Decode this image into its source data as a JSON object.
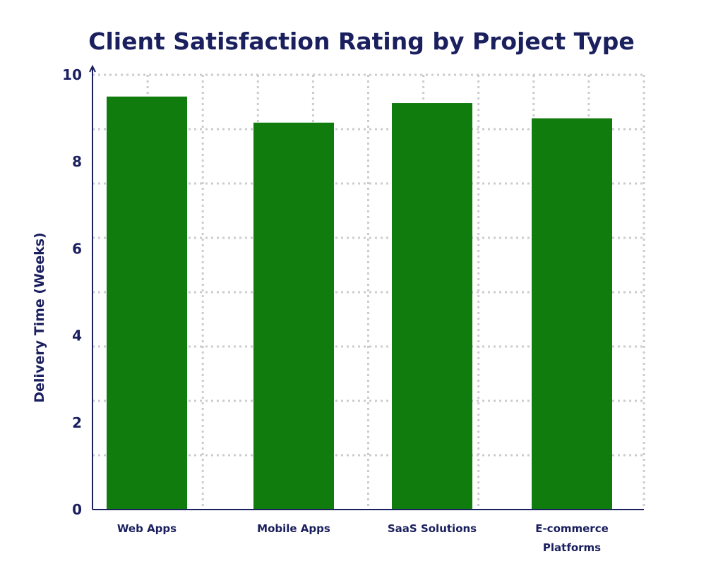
{
  "colors": {
    "text": "#1a1f5e",
    "bar": "#117c0e",
    "grid": "#cccccc",
    "axis": "#1a1f5e"
  },
  "chart_data": {
    "type": "bar",
    "title": "Client Satisfaction Rating by Project Type",
    "xlabel": "",
    "ylabel": "Delivery Time (Weeks)",
    "categories": [
      "Web Apps",
      "Mobile Apps",
      "SaaS Solutions",
      "E-commerce Platforms"
    ],
    "category_lines": [
      [
        "Web Apps"
      ],
      [
        "Mobile Apps"
      ],
      [
        "SaaS Solutions"
      ],
      [
        "E-commerce",
        "Platforms"
      ]
    ],
    "values": [
      9.5,
      8.9,
      9.35,
      9.0
    ],
    "ylim": [
      0,
      10
    ],
    "yticks": [
      0,
      2,
      4,
      6,
      8,
      10
    ],
    "grid": true,
    "legend": "none"
  }
}
